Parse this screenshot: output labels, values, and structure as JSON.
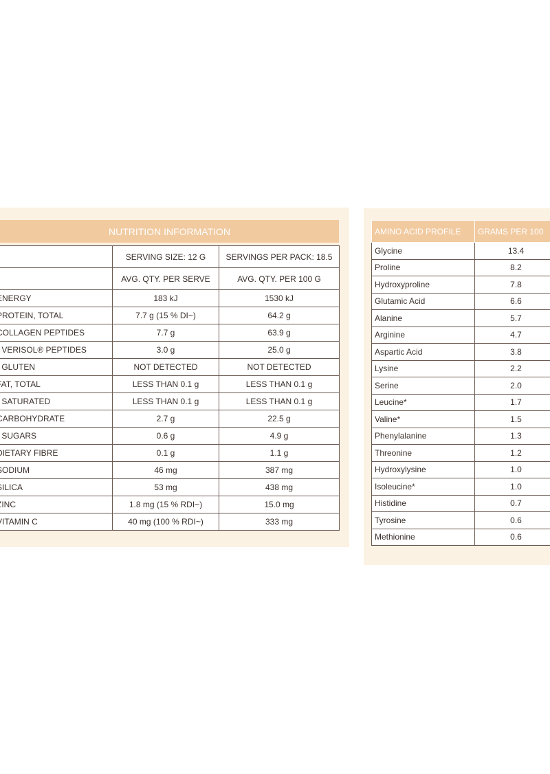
{
  "nutrition": {
    "title": "NUTRITION INFORMATION",
    "headers": [
      [
        "SERVING SIZE: 12 G",
        "SERVINGS PER PACK: 18.5"
      ],
      [
        "AVG. QTY.  PER SERVE",
        "AVG. QTY. PER 100 G"
      ]
    ],
    "rows": [
      [
        "ENERGY",
        "183 kJ",
        "1530 kJ"
      ],
      [
        "PROTEIN, TOTAL",
        "7.7 g (15 % DI~)",
        "64.2 g"
      ],
      [
        "COLLAGEN PEPTIDES",
        "7.7 g",
        "63.9 g"
      ],
      [
        "- VERISOL® PEPTIDES",
        "3.0 g",
        "25.0 g"
      ],
      [
        "- GLUTEN",
        "NOT DETECTED",
        "NOT DETECTED"
      ],
      [
        "FAT, TOTAL",
        "LESS THAN 0.1 g",
        "LESS THAN 0.1 g"
      ],
      [
        "- SATURATED",
        "LESS THAN 0.1 g",
        "LESS THAN 0.1 g"
      ],
      [
        "CARBOHYDRATE",
        "2.7 g",
        "22.5 g"
      ],
      [
        "- SUGARS",
        "0.6 g",
        "4.9 g"
      ],
      [
        "DIETARY FIBRE",
        "0.1 g",
        "1.1 g"
      ],
      [
        "SODIUM",
        "46 mg",
        "387 mg"
      ],
      [
        "SILICA",
        "53 mg",
        "438 mg"
      ],
      [
        "ZINC",
        "1.8 mg (15 % RDI~)",
        "15.0 mg"
      ],
      [
        "VITAMIN C",
        "40 mg (100 % RDI~)",
        "333 mg"
      ]
    ]
  },
  "amino": {
    "headers": [
      "AMINO ACID PROFILE",
      "GRAMS PER 100"
    ],
    "rows": [
      [
        "Glycine",
        "13.4"
      ],
      [
        "Proline",
        "8.2"
      ],
      [
        "Hydroxyproline",
        "7.8"
      ],
      [
        "Glutamic Acid",
        "6.6"
      ],
      [
        "Alanine",
        "5.7"
      ],
      [
        "Arginine",
        "4.7"
      ],
      [
        "Aspartic Acid",
        "3.8"
      ],
      [
        "Lysine",
        "2.2"
      ],
      [
        "Serine",
        "2.0"
      ],
      [
        "Leucine*",
        "1.7"
      ],
      [
        "Valine*",
        "1.5"
      ],
      [
        "Phenylalanine",
        "1.3"
      ],
      [
        "Threonine",
        "1.2"
      ],
      [
        "Hydroxylysine",
        "1.0"
      ],
      [
        "Isoleucine*",
        "1.0"
      ],
      [
        "Histidine",
        "0.7"
      ],
      [
        "Tyrosine",
        "0.6"
      ],
      [
        "Methionine",
        "0.6"
      ]
    ]
  }
}
